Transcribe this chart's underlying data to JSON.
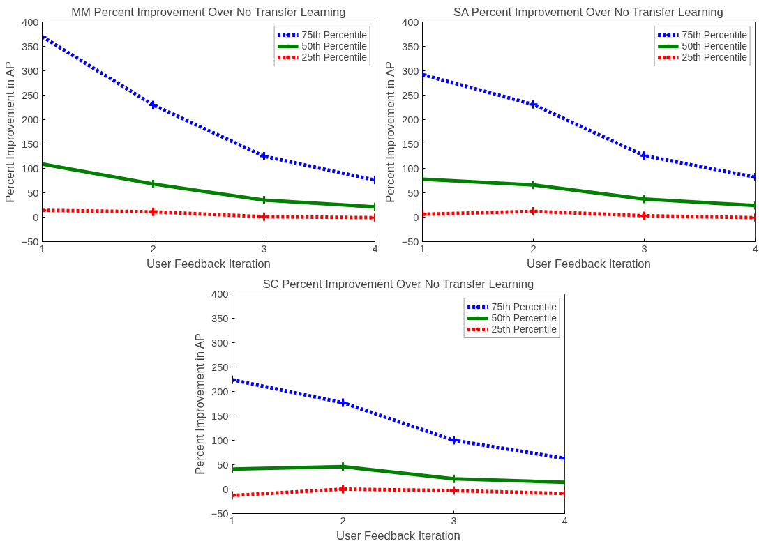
{
  "chart_data": [
    {
      "type": "line",
      "title": "MM Percent Improvement Over No Transfer Learning",
      "xlabel": "User Feedback Iteration",
      "ylabel": "Percent Improvement in AP",
      "x": [
        1,
        2,
        3,
        4
      ],
      "xlim": [
        1,
        4
      ],
      "xticks": [
        1,
        2,
        3,
        4
      ],
      "ylim": [
        -50,
        400
      ],
      "yticks": [
        -50,
        0,
        50,
        100,
        150,
        200,
        250,
        300,
        350,
        400
      ],
      "marker": "cross",
      "legend": "top right",
      "series": [
        {
          "name": "75th Percentile",
          "color": "#0000ff",
          "line_style": "dashed",
          "values": [
            370,
            230,
            125,
            76
          ]
        },
        {
          "name": "50th Percentile",
          "color": "#008000",
          "line_style": "solid",
          "values": [
            109,
            68,
            35,
            21
          ]
        },
        {
          "name": "25th Percentile",
          "color": "#ff0000",
          "line_style": "dashed",
          "values": [
            14,
            11,
            1,
            -1
          ]
        }
      ]
    },
    {
      "type": "line",
      "title": "SA Percent Improvement Over No Transfer Learning",
      "xlabel": "User Feedback Iteration",
      "ylabel": "Percent Improvement in AP",
      "x": [
        1,
        2,
        3,
        4
      ],
      "xlim": [
        1,
        4
      ],
      "xticks": [
        1,
        2,
        3,
        4
      ],
      "ylim": [
        -50,
        400
      ],
      "yticks": [
        -50,
        0,
        50,
        100,
        150,
        200,
        250,
        300,
        350,
        400
      ],
      "marker": "cross",
      "legend": "top right",
      "series": [
        {
          "name": "75th Percentile",
          "color": "#0000ff",
          "line_style": "dashed",
          "values": [
            292,
            231,
            126,
            82
          ]
        },
        {
          "name": "50th Percentile",
          "color": "#008000",
          "line_style": "solid",
          "values": [
            78,
            66,
            37,
            24
          ]
        },
        {
          "name": "25th Percentile",
          "color": "#ff0000",
          "line_style": "dashed",
          "values": [
            6,
            12,
            3,
            -1
          ]
        }
      ]
    },
    {
      "type": "line",
      "title": "SC Percent Improvement Over No Transfer Learning",
      "xlabel": "User Feedback Iteration",
      "ylabel": "Percent Improvement in AP",
      "x": [
        1,
        2,
        3,
        4
      ],
      "xlim": [
        1,
        4
      ],
      "xticks": [
        1,
        2,
        3,
        4
      ],
      "ylim": [
        -50,
        400
      ],
      "yticks": [
        -50,
        0,
        50,
        100,
        150,
        200,
        250,
        300,
        350,
        400
      ],
      "marker": "cross",
      "legend": "top right",
      "series": [
        {
          "name": "75th Percentile",
          "color": "#0000ff",
          "line_style": "dashed",
          "values": [
            224,
            177,
            100,
            63
          ]
        },
        {
          "name": "50th Percentile",
          "color": "#008000",
          "line_style": "solid",
          "values": [
            41,
            46,
            21,
            14
          ]
        },
        {
          "name": "25th Percentile",
          "color": "#ff0000",
          "line_style": "dashed",
          "values": [
            -13,
            0,
            -3,
            -9
          ]
        }
      ]
    }
  ]
}
